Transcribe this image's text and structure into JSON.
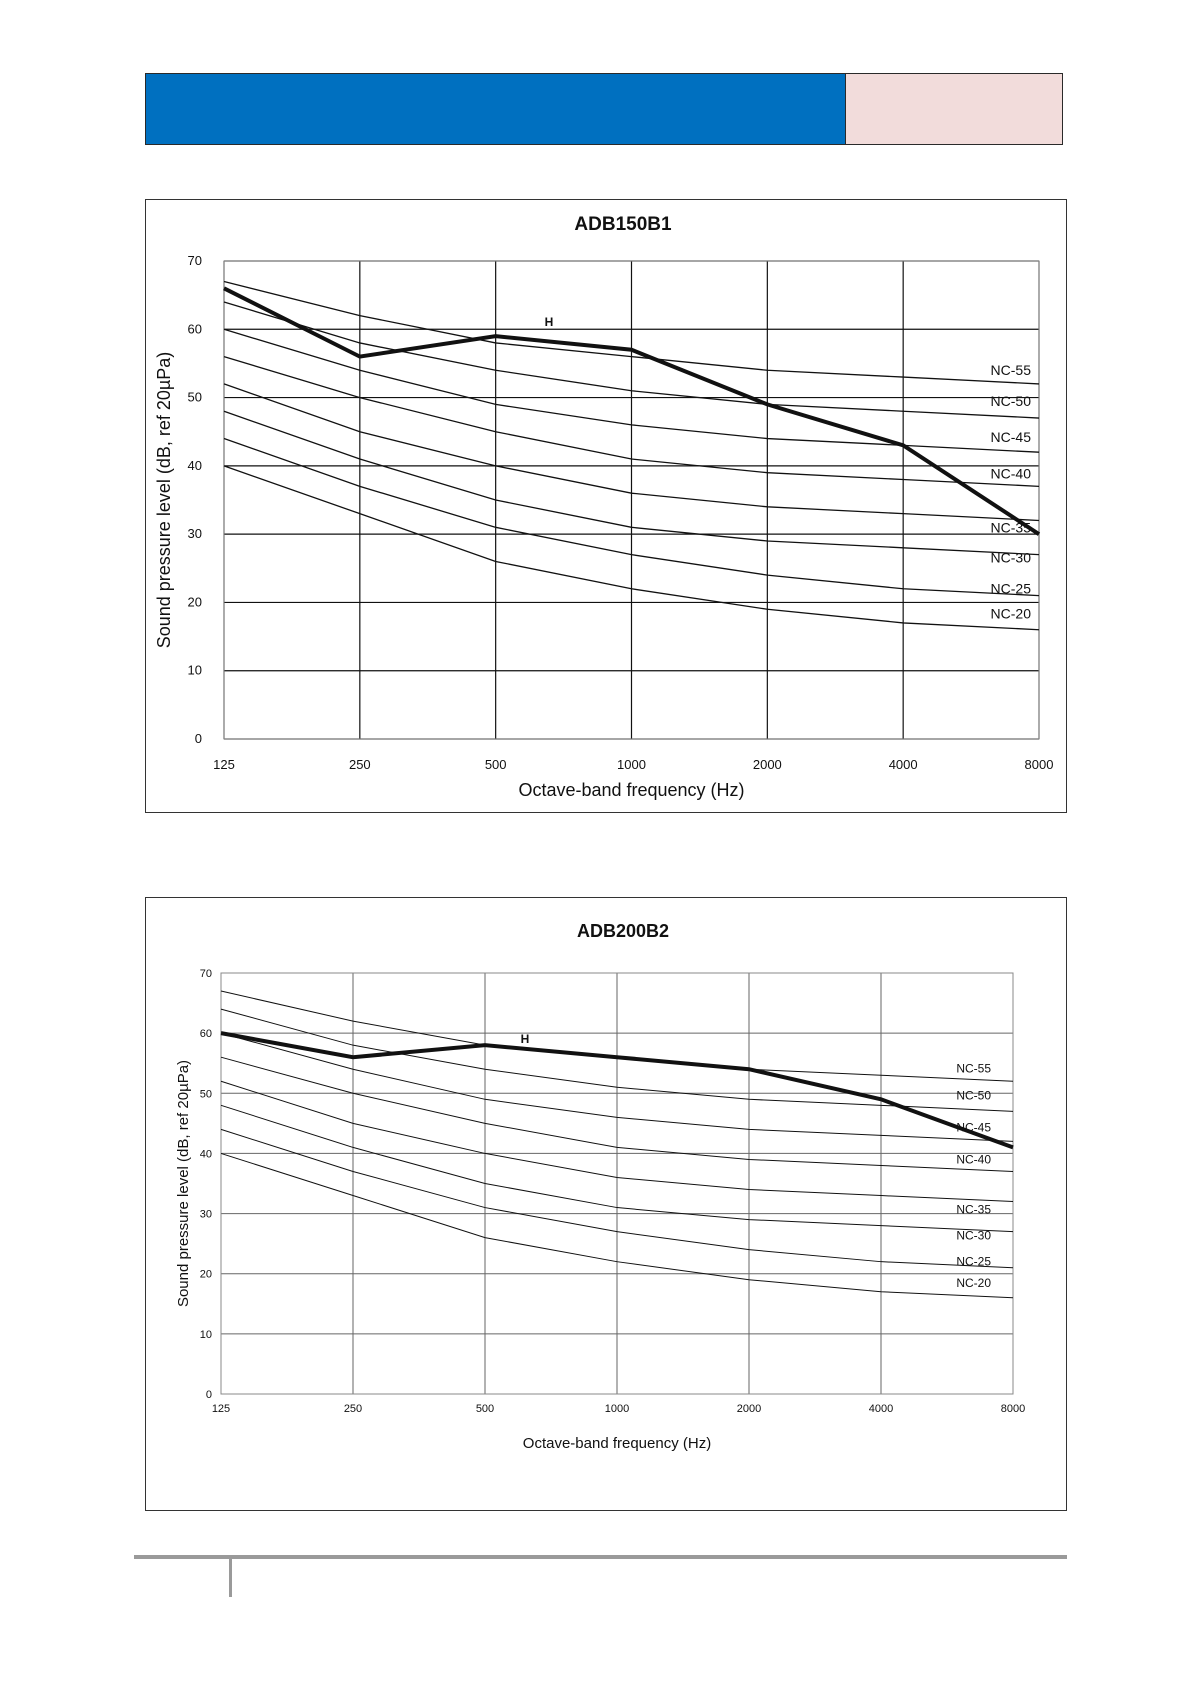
{
  "header": {
    "accent_color": "#0070c0",
    "box_color": "#f2dcdb"
  },
  "chart_data": [
    {
      "type": "line",
      "title": "ADB150B1",
      "xlabel": "Octave-band frequency (Hz)",
      "ylabel": "Sound pressure level (dB, ref 20µPa)",
      "categories": [
        "125",
        "250",
        "500",
        "1000",
        "2000",
        "4000",
        "8000"
      ],
      "ylim": [
        0,
        70
      ],
      "yticks": [
        "0",
        "10",
        "20",
        "30",
        "40",
        "50",
        "60",
        "70"
      ],
      "grid": true,
      "series": [
        {
          "name": "H",
          "values": [
            66,
            56,
            59,
            57,
            49,
            43,
            30
          ],
          "bold": true
        },
        {
          "name": "NC-55",
          "values": [
            67,
            62,
            58,
            56,
            54,
            53,
            52
          ]
        },
        {
          "name": "NC-50",
          "values": [
            64,
            58,
            54,
            51,
            49,
            48,
            47
          ]
        },
        {
          "name": "NC-45",
          "values": [
            60,
            54,
            49,
            46,
            44,
            43,
            42
          ]
        },
        {
          "name": "NC-40",
          "values": [
            56,
            50,
            45,
            41,
            39,
            38,
            37
          ]
        },
        {
          "name": "NC-35",
          "values": [
            52,
            45,
            40,
            36,
            34,
            33,
            32
          ]
        },
        {
          "name": "NC-30",
          "values": [
            48,
            41,
            35,
            31,
            29,
            28,
            27
          ]
        },
        {
          "name": "NC-25",
          "values": [
            44,
            37,
            31,
            27,
            24,
            22,
            21
          ]
        },
        {
          "name": "NC-20",
          "values": [
            40,
            33,
            26,
            22,
            19,
            17,
            16
          ]
        }
      ]
    },
    {
      "type": "line",
      "title": "ADB200B2",
      "xlabel": "Octave-band frequency (Hz)",
      "ylabel": "Sound pressure level (dB, ref 20µPa)",
      "categories": [
        "125",
        "250",
        "500",
        "1000",
        "2000",
        "4000",
        "8000"
      ],
      "ylim": [
        0,
        70
      ],
      "yticks": [
        "0",
        "10",
        "20",
        "30",
        "40",
        "50",
        "60",
        "70"
      ],
      "grid": true,
      "series": [
        {
          "name": "H",
          "values": [
            60,
            56,
            58,
            56,
            54,
            49,
            41
          ],
          "bold": true
        },
        {
          "name": "NC-55",
          "values": [
            67,
            62,
            58,
            56,
            54,
            53,
            52
          ]
        },
        {
          "name": "NC-50",
          "values": [
            64,
            58,
            54,
            51,
            49,
            48,
            47
          ]
        },
        {
          "name": "NC-45",
          "values": [
            60,
            54,
            49,
            46,
            44,
            43,
            42
          ]
        },
        {
          "name": "NC-40",
          "values": [
            56,
            50,
            45,
            41,
            39,
            38,
            37
          ]
        },
        {
          "name": "NC-35",
          "values": [
            52,
            45,
            40,
            36,
            34,
            33,
            32
          ]
        },
        {
          "name": "NC-30",
          "values": [
            48,
            41,
            35,
            31,
            29,
            28,
            27
          ]
        },
        {
          "name": "NC-25",
          "values": [
            44,
            37,
            31,
            27,
            24,
            22,
            21
          ]
        },
        {
          "name": "NC-20",
          "values": [
            40,
            33,
            26,
            22,
            19,
            17,
            16
          ]
        }
      ]
    }
  ]
}
